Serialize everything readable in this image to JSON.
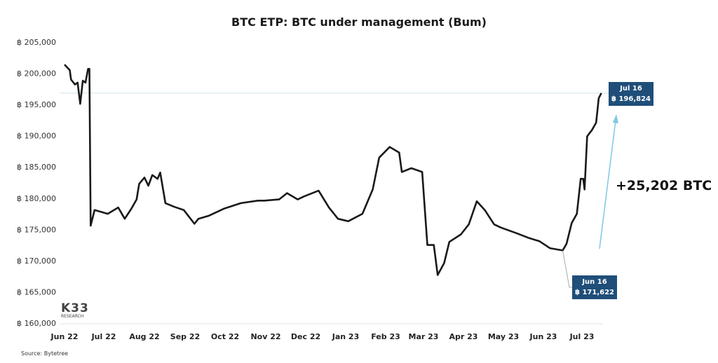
{
  "chart_data": {
    "type": "line",
    "title": "BTC ETP: BTC under management (Bum)",
    "xlabel": "",
    "ylabel": "",
    "ylim": [
      160000,
      205000
    ],
    "yticks": [
      "฿ 160,000",
      "฿ 165,000",
      "฿ 170,000",
      "฿ 175,000",
      "฿ 180,000",
      "฿ 185,000",
      "฿ 190,000",
      "฿ 195,000",
      "฿ 200,000",
      "฿ 205,000"
    ],
    "ytick_values": [
      160000,
      165000,
      170000,
      175000,
      180000,
      185000,
      190000,
      195000,
      200000,
      205000
    ],
    "xticks": [
      "Jun 22",
      "Jul 22",
      "Aug 22",
      "Sep 22",
      "Oct 22",
      "Nov 22",
      "Dec 22",
      "Jan 23",
      "Feb 23",
      "Mar 23",
      "Apr 23",
      "May 23",
      "Jun 23",
      "Jul 23"
    ],
    "xtick_dates": [
      "2022-06-01",
      "2022-07-01",
      "2022-08-01",
      "2022-09-01",
      "2022-10-01",
      "2022-11-01",
      "2022-12-01",
      "2023-01-01",
      "2023-02-01",
      "2023-03-01",
      "2023-04-01",
      "2023-05-01",
      "2023-06-01",
      "2023-07-01"
    ],
    "grid": false,
    "series": [
      {
        "color": "#1a1a1a",
        "points": [
          [
            "2022-06-01",
            201400
          ],
          [
            "2022-06-05",
            200500
          ],
          [
            "2022-06-06",
            199000
          ],
          [
            "2022-06-09",
            198200
          ],
          [
            "2022-06-11",
            198500
          ],
          [
            "2022-06-13",
            195100
          ],
          [
            "2022-06-15",
            198800
          ],
          [
            "2022-06-17",
            198500
          ],
          [
            "2022-06-19",
            200700
          ],
          [
            "2022-06-20",
            200700
          ],
          [
            "2022-06-21",
            175600
          ],
          [
            "2022-06-24",
            178100
          ],
          [
            "2022-06-29",
            177800
          ],
          [
            "2022-07-04",
            177500
          ],
          [
            "2022-07-12",
            178500
          ],
          [
            "2022-07-17",
            176700
          ],
          [
            "2022-07-22",
            178300
          ],
          [
            "2022-07-26",
            179800
          ],
          [
            "2022-07-28",
            182300
          ],
          [
            "2022-08-01",
            183300
          ],
          [
            "2022-08-04",
            182000
          ],
          [
            "2022-08-07",
            183700
          ],
          [
            "2022-08-11",
            183100
          ],
          [
            "2022-08-13",
            184100
          ],
          [
            "2022-08-17",
            179200
          ],
          [
            "2022-08-24",
            178600
          ],
          [
            "2022-08-31",
            178100
          ],
          [
            "2022-09-08",
            175900
          ],
          [
            "2022-09-11",
            176700
          ],
          [
            "2022-09-19",
            177200
          ],
          [
            "2022-09-30",
            178300
          ],
          [
            "2022-10-13",
            179200
          ],
          [
            "2022-10-26",
            179600
          ],
          [
            "2022-10-31",
            179600
          ],
          [
            "2022-11-11",
            179800
          ],
          [
            "2022-11-17",
            180800
          ],
          [
            "2022-11-25",
            179800
          ],
          [
            "2022-11-30",
            180300
          ],
          [
            "2022-12-11",
            181200
          ],
          [
            "2022-12-19",
            178500
          ],
          [
            "2022-12-26",
            176700
          ],
          [
            "2023-01-03",
            176300
          ],
          [
            "2023-01-14",
            177500
          ],
          [
            "2023-01-22",
            181400
          ],
          [
            "2023-01-27",
            186500
          ],
          [
            "2023-02-04",
            188200
          ],
          [
            "2023-02-11",
            187300
          ],
          [
            "2023-02-13",
            184200
          ],
          [
            "2023-02-20",
            184800
          ],
          [
            "2023-02-28",
            184200
          ],
          [
            "2023-03-04",
            172500
          ],
          [
            "2023-03-09",
            172500
          ],
          [
            "2023-03-12",
            167700
          ],
          [
            "2023-03-17",
            169600
          ],
          [
            "2023-03-21",
            173000
          ],
          [
            "2023-03-30",
            174200
          ],
          [
            "2023-04-05",
            175800
          ],
          [
            "2023-04-11",
            179500
          ],
          [
            "2023-04-17",
            178100
          ],
          [
            "2023-04-24",
            175800
          ],
          [
            "2023-04-29",
            175300
          ],
          [
            "2023-05-11",
            174400
          ],
          [
            "2023-05-21",
            173600
          ],
          [
            "2023-05-29",
            173100
          ],
          [
            "2023-06-06",
            172000
          ],
          [
            "2023-06-16",
            171622
          ],
          [
            "2023-06-19",
            172700
          ],
          [
            "2023-06-23",
            176000
          ],
          [
            "2023-06-27",
            177500
          ],
          [
            "2023-06-30",
            183100
          ],
          [
            "2023-07-02",
            183100
          ],
          [
            "2023-07-03",
            181400
          ],
          [
            "2023-07-05",
            189900
          ],
          [
            "2023-07-09",
            191000
          ],
          [
            "2023-07-12",
            192100
          ],
          [
            "2023-07-14",
            196000
          ],
          [
            "2023-07-16",
            196824
          ]
        ]
      }
    ],
    "reference_line": {
      "value": 196824,
      "color": "#cfe3ea"
    },
    "annotations": [
      {
        "date": "Jul 16",
        "value": "฿ 196,824"
      },
      {
        "date": "Jun 16",
        "value": "฿ 171,622"
      },
      {
        "text": "+25,202 BTC"
      }
    ],
    "colors": {
      "line": "#1a1a1a",
      "label_box": "#1f4e79",
      "arrow": "#7ec8e3"
    }
  },
  "logo": {
    "main": "K33",
    "sub": "RESEARCH"
  },
  "source": "Source: Bytetree"
}
